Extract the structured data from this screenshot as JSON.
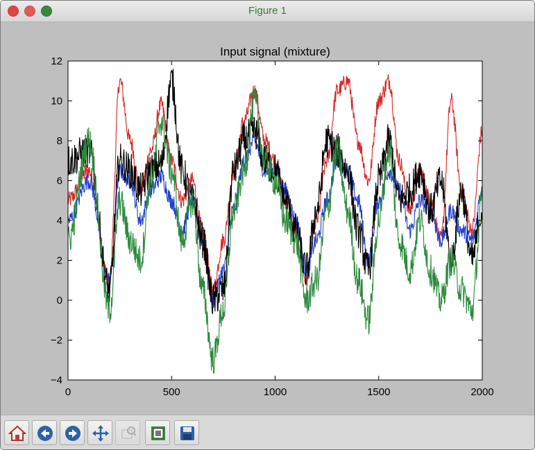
{
  "window": {
    "title": "Figure 1"
  },
  "toolbar": {
    "buttons": [
      {
        "name": "home-button",
        "icon": "home-icon"
      },
      {
        "name": "back-button",
        "icon": "back-arrow-icon"
      },
      {
        "name": "forward-button",
        "icon": "forward-arrow-icon"
      },
      {
        "name": "pan-button",
        "icon": "move-icon"
      },
      {
        "name": "zoom-button",
        "icon": "zoom-icon"
      },
      {
        "name": "subplots-button",
        "icon": "subplots-icon"
      },
      {
        "name": "save-button",
        "icon": "save-icon"
      }
    ]
  },
  "chart_data": {
    "type": "line",
    "title": "Input signal (mixture)",
    "xlabel": "",
    "ylabel": "",
    "xlim": [
      0,
      2000
    ],
    "ylim": [
      -4,
      12
    ],
    "xticks": [
      0,
      500,
      1000,
      1500,
      2000
    ],
    "yticks": [
      -4,
      -2,
      0,
      2,
      4,
      6,
      8,
      10,
      12
    ],
    "grid": false,
    "x": [
      0,
      100,
      200,
      250,
      300,
      350,
      400,
      450,
      500,
      550,
      600,
      650,
      700,
      750,
      800,
      850,
      900,
      950,
      1000,
      1050,
      1100,
      1150,
      1200,
      1250,
      1300,
      1350,
      1400,
      1450,
      1500,
      1550,
      1600,
      1650,
      1700,
      1750,
      1800,
      1850,
      1900,
      1950,
      2000
    ],
    "series": [
      {
        "color": "#d62728",
        "values": [
          5.0,
          6.5,
          1.0,
          11.0,
          8.0,
          5.5,
          7.5,
          9.8,
          7.0,
          5.0,
          6.0,
          3.5,
          0.5,
          3.0,
          6.5,
          9.0,
          10.5,
          8.0,
          7.0,
          5.0,
          3.5,
          1.0,
          4.0,
          7.0,
          10.5,
          11.0,
          8.0,
          6.0,
          10.0,
          11.0,
          7.0,
          4.5,
          6.5,
          5.0,
          3.0,
          10.0,
          5.5,
          3.5,
          8.5
        ]
      },
      {
        "color": "#1f3fd0",
        "values": [
          4.0,
          6.0,
          1.0,
          6.5,
          6.0,
          4.0,
          5.5,
          6.2,
          5.0,
          3.5,
          5.0,
          3.0,
          0.0,
          1.5,
          4.5,
          7.0,
          8.0,
          6.5,
          6.5,
          5.5,
          4.0,
          1.5,
          3.0,
          5.0,
          7.0,
          6.5,
          5.0,
          2.0,
          5.0,
          6.5,
          5.5,
          3.5,
          5.0,
          4.5,
          3.0,
          4.5,
          3.5,
          3.0,
          5.5
        ]
      },
      {
        "color": "#000000",
        "values": [
          7.0,
          7.5,
          0.5,
          7.0,
          6.5,
          5.5,
          6.5,
          6.8,
          11.0,
          6.5,
          5.0,
          3.0,
          0.0,
          0.5,
          6.5,
          8.0,
          8.5,
          7.0,
          6.5,
          5.0,
          3.5,
          1.5,
          4.5,
          8.0,
          7.5,
          6.5,
          3.5,
          1.5,
          6.0,
          8.0,
          5.0,
          5.5,
          6.5,
          4.5,
          6.0,
          2.0,
          5.5,
          2.0,
          4.5
        ]
      },
      {
        "color": "#2a8a3a",
        "values": [
          3.0,
          8.0,
          -0.5,
          5.0,
          3.0,
          2.0,
          6.0,
          9.0,
          6.5,
          3.0,
          5.0,
          0.5,
          -3.0,
          -0.5,
          4.5,
          6.5,
          10.0,
          7.0,
          6.0,
          4.0,
          3.0,
          0.0,
          1.0,
          4.5,
          7.5,
          4.5,
          1.0,
          -1.0,
          4.0,
          7.5,
          3.0,
          1.5,
          4.0,
          1.5,
          0.0,
          2.0,
          0.5,
          -0.5,
          5.0
        ]
      }
    ]
  }
}
